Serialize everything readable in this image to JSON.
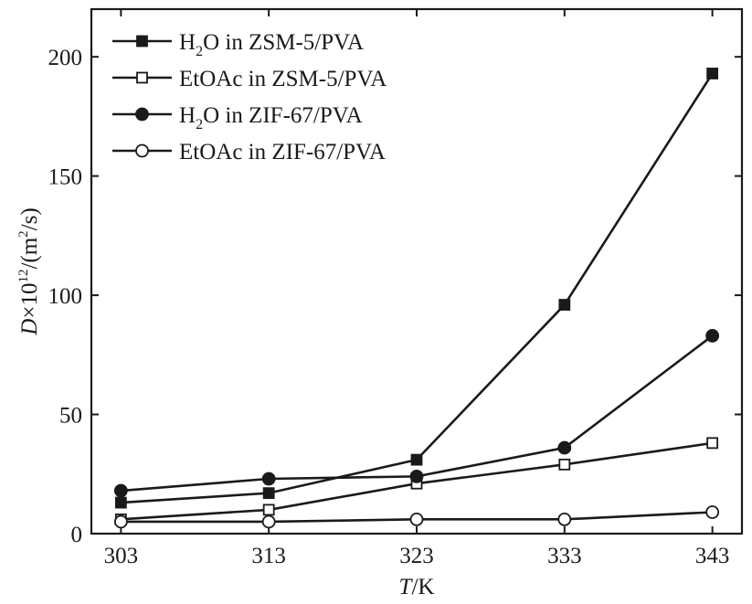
{
  "chart_data": {
    "type": "line",
    "x": [
      303,
      313,
      323,
      333,
      343
    ],
    "x_tick_labels": [
      "303",
      "313",
      "323",
      "333",
      "343"
    ],
    "y_tick_labels": [
      "0",
      "50",
      "100",
      "150",
      "200"
    ],
    "y_ticks": [
      0,
      50,
      100,
      150,
      200
    ],
    "xlim": [
      301,
      345
    ],
    "ylim": [
      0,
      220
    ],
    "xlabel_italic": "T",
    "xlabel_unit": "/K",
    "ylabel_italic": "D",
    "ylabel_mid": "×10",
    "ylabel_exp": "12",
    "ylabel_unit_a": "/(m",
    "ylabel_unit_sup": "2",
    "ylabel_unit_b": "/s)",
    "grid": false,
    "legend_position": "top-left",
    "series": [
      {
        "name": "H2O in ZSM-5/PVA",
        "label_main": "H",
        "label_sub": "2",
        "label_rest": "O in ZSM-5/PVA",
        "marker": "square-filled",
        "values": [
          13,
          17,
          31,
          96,
          193
        ]
      },
      {
        "name": "EtOAc in ZSM-5/PVA",
        "label_main": "EtOAc in ZSM-5/PVA",
        "label_sub": "",
        "label_rest": "",
        "marker": "square-open",
        "values": [
          6,
          10,
          21,
          29,
          38
        ]
      },
      {
        "name": "H2O in ZIF-67/PVA",
        "label_main": "H",
        "label_sub": "2",
        "label_rest": "O in ZIF-67/PVA",
        "marker": "circle-filled",
        "values": [
          18,
          23,
          24,
          36,
          83
        ]
      },
      {
        "name": "EtOAc in ZIF-67/PVA",
        "label_main": "EtOAc in ZIF-67/PVA",
        "label_sub": "",
        "label_rest": "",
        "marker": "circle-open",
        "values": [
          5,
          5,
          6,
          6,
          9
        ]
      }
    ]
  }
}
